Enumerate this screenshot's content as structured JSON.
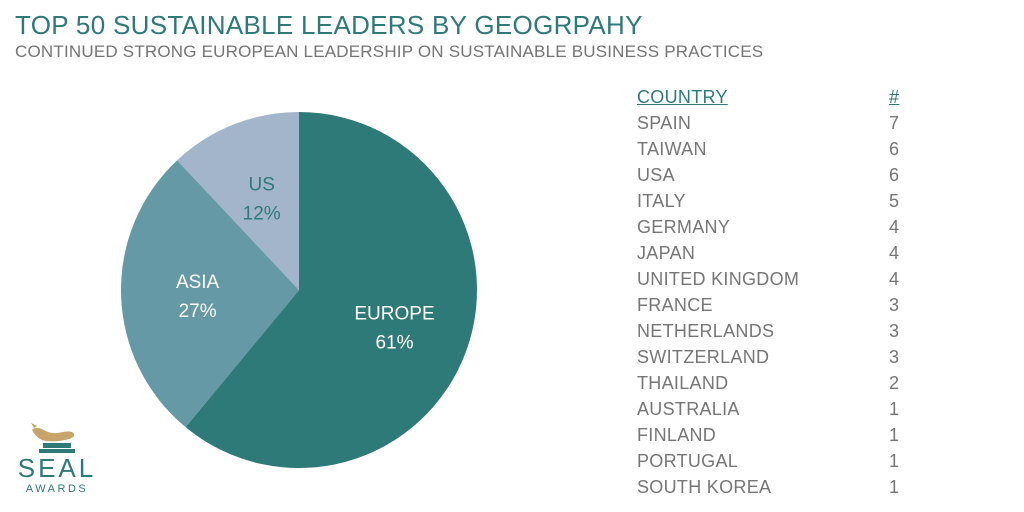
{
  "header": {
    "title": "TOP 50 SUSTAINABLE LEADERS BY GEOGRPAHY",
    "subtitle": "CONTINUED STRONG EUROPEAN LEADERSHIP ON SUSTAINABLE BUSINESS PRACTICES"
  },
  "chart_data": {
    "type": "pie",
    "title": "TOP 50 SUSTAINABLE LEADERS BY GEOGRPAHY",
    "subtitle": "CONTINUED STRONG EUROPEAN LEADERSHIP ON SUSTAINABLE BUSINESS PRACTICES",
    "slices": [
      {
        "label": "EUROPE",
        "value": 61,
        "display": "61%",
        "color": "#2e7a79",
        "text_color": "#ffffff"
      },
      {
        "label": "ASIA",
        "value": 27,
        "display": "27%",
        "color": "#6699a6",
        "text_color": "#ffffff"
      },
      {
        "label": "US",
        "value": 12,
        "display": "12%",
        "color": "#a3b5ca",
        "text_color": "#2e7a79"
      }
    ],
    "legend": "none"
  },
  "table": {
    "headers": {
      "country": "COUNTRY",
      "count": "#"
    },
    "rows": [
      {
        "country": "SPAIN",
        "count": "7"
      },
      {
        "country": "TAIWAN",
        "count": "6"
      },
      {
        "country": "USA",
        "count": "6"
      },
      {
        "country": "ITALY",
        "count": "5"
      },
      {
        "country": "GERMANY",
        "count": "4"
      },
      {
        "country": "JAPAN",
        "count": "4"
      },
      {
        "country": "UNITED KINGDOM",
        "count": "4"
      },
      {
        "country": "FRANCE",
        "count": "3"
      },
      {
        "country": "NETHERLANDS",
        "count": "3"
      },
      {
        "country": "SWITZERLAND",
        "count": "3"
      },
      {
        "country": "THAILAND",
        "count": "2"
      },
      {
        "country": "AUSTRALIA",
        "count": "1"
      },
      {
        "country": "FINLAND",
        "count": "1"
      },
      {
        "country": "PORTUGAL",
        "count": "1"
      },
      {
        "country": "SOUTH KOREA",
        "count": "1"
      }
    ]
  },
  "logo": {
    "name": "SEAL",
    "sub": "AWARDS",
    "icon": "seal-icon",
    "accent": "#c8a46a"
  },
  "colors": {
    "brand": "#2e7a79",
    "text_gray": "#767676"
  }
}
